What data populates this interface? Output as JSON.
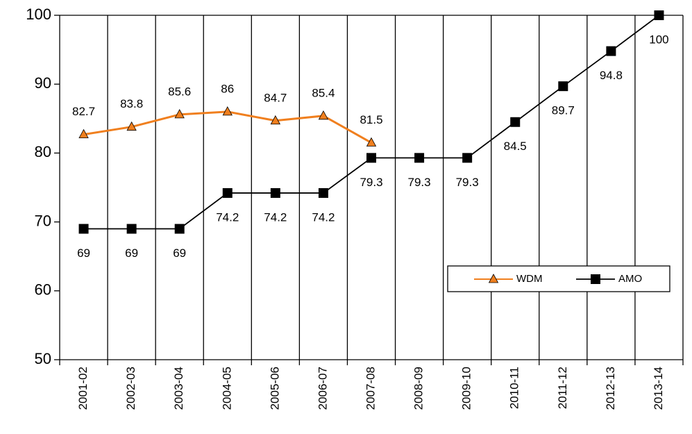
{
  "chart_data": {
    "type": "line",
    "categories": [
      "2001-02",
      "2002-03",
      "2003-04",
      "2004-05",
      "2005-06",
      "2006-07",
      "2007-08",
      "2008-09",
      "2009-10",
      "2010-11",
      "2011-12",
      "2012-13",
      "2013-14"
    ],
    "series": [
      {
        "name": "WDM",
        "color": "#f07f1e",
        "marker": "triangle",
        "label_position": "above",
        "values": [
          82.7,
          83.8,
          85.6,
          86,
          84.7,
          85.4,
          81.5,
          null,
          null,
          null,
          null,
          null,
          null
        ]
      },
      {
        "name": "AMO",
        "color": "#000000",
        "marker": "square",
        "label_position": "below",
        "values": [
          69,
          69,
          69,
          74.2,
          74.2,
          74.2,
          79.3,
          79.3,
          79.3,
          84.5,
          89.7,
          94.8,
          100
        ]
      }
    ],
    "ylim": [
      50,
      100
    ],
    "yticks": [
      50,
      60,
      70,
      80,
      90,
      100
    ],
    "grid": "x",
    "legend": "center right"
  }
}
